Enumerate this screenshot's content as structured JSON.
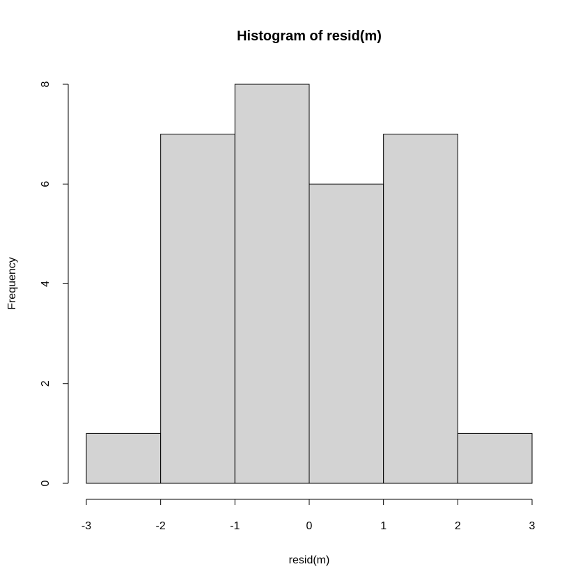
{
  "chart_data": {
    "type": "bar",
    "title": "Histogram of resid(m)",
    "xlabel": "resid(m)",
    "ylabel": "Frequency",
    "bins": [
      {
        "start": -3,
        "end": -2,
        "count": 1
      },
      {
        "start": -2,
        "end": -1,
        "count": 7
      },
      {
        "start": -1,
        "end": 0,
        "count": 8
      },
      {
        "start": 0,
        "end": 1,
        "count": 6
      },
      {
        "start": 1,
        "end": 2,
        "count": 7
      },
      {
        "start": 2,
        "end": 3,
        "count": 1
      }
    ],
    "xlim": [
      -3,
      3
    ],
    "ylim": [
      0,
      8
    ],
    "x_ticks": [
      "-3",
      "-2",
      "-1",
      "0",
      "1",
      "2",
      "3"
    ],
    "y_ticks": [
      "0",
      "2",
      "4",
      "6",
      "8"
    ],
    "grid": false,
    "bar_color": "#d3d3d3",
    "edge_color": "#000000"
  }
}
